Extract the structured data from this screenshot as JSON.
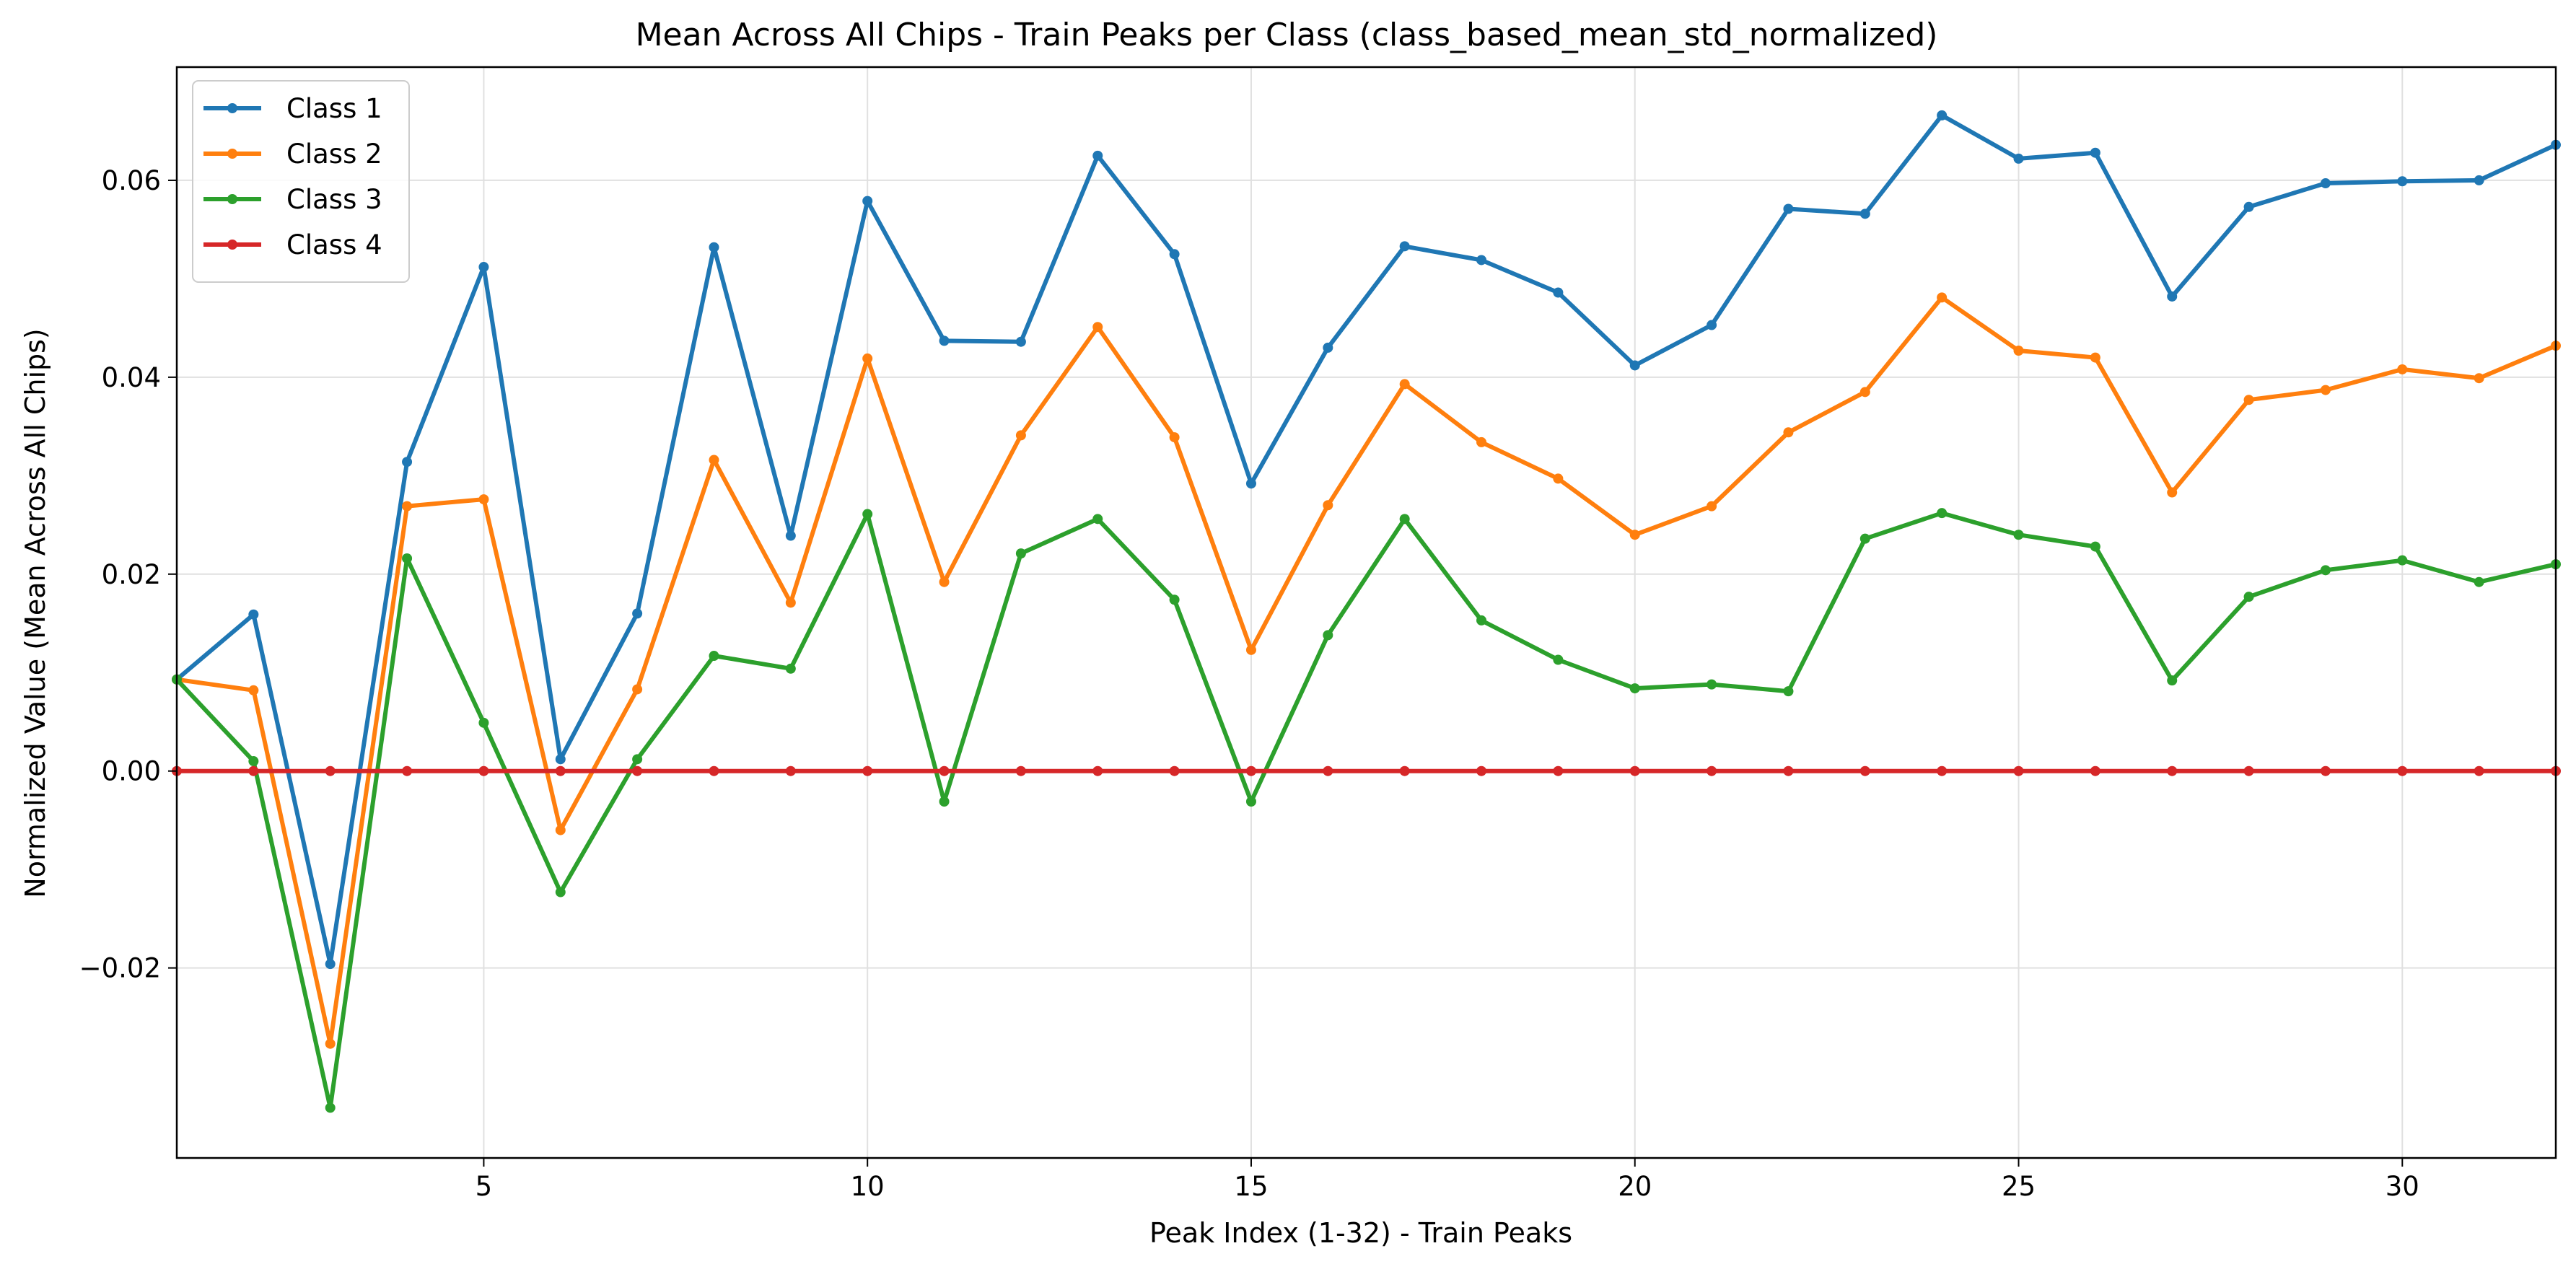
{
  "chart_data": {
    "type": "line",
    "title": "Mean Across All Chips - Train Peaks per Class (class_based_mean_std_normalized)",
    "xlabel": "Peak Index (1-32) - Train Peaks",
    "ylabel": "Normalized Value (Mean Across All Chips)",
    "xlim": [
      1,
      32
    ],
    "ylim": [
      -0.0393,
      0.0715
    ],
    "xticks": [
      5,
      10,
      15,
      20,
      25,
      30
    ],
    "xtick_labels": [
      "5",
      "10",
      "15",
      "20",
      "25",
      "30"
    ],
    "yticks": [
      -0.02,
      0.0,
      0.02,
      0.04,
      0.06
    ],
    "ytick_labels": [
      "−0.02",
      "0.00",
      "0.02",
      "0.04",
      "0.06"
    ],
    "grid": true,
    "legend_position": "top-left",
    "x": [
      1,
      2,
      3,
      4,
      5,
      6,
      7,
      8,
      9,
      10,
      11,
      12,
      13,
      14,
      15,
      16,
      17,
      18,
      19,
      20,
      21,
      22,
      23,
      24,
      25,
      26,
      27,
      28,
      29,
      30,
      31,
      32
    ],
    "series": [
      {
        "name": "Class 1",
        "color": "#1f77b4",
        "values": [
          0.0093,
          0.0159,
          -0.0196,
          0.0314,
          0.0512,
          0.0012,
          0.016,
          0.0532,
          0.0239,
          0.0579,
          0.0437,
          0.0436,
          0.0625,
          0.0525,
          0.0292,
          0.043,
          0.0533,
          0.0519,
          0.0486,
          0.0412,
          0.0453,
          0.0571,
          0.0566,
          0.0666,
          0.0622,
          0.0628,
          0.0482,
          0.0573,
          0.0597,
          0.0599,
          0.06,
          0.0636
        ]
      },
      {
        "name": "Class 2",
        "color": "#ff7f0e",
        "values": [
          0.0093,
          0.0082,
          -0.0277,
          0.0269,
          0.0276,
          -0.006,
          0.0083,
          0.0316,
          0.0171,
          0.0419,
          0.0192,
          0.0341,
          0.0451,
          0.0339,
          0.0123,
          0.027,
          0.0393,
          0.0334,
          0.0297,
          0.024,
          0.0269,
          0.0344,
          0.0385,
          0.0481,
          0.0427,
          0.042,
          0.0283,
          0.0377,
          0.0387,
          0.0408,
          0.0399,
          0.0432
        ]
      },
      {
        "name": "Class 3",
        "color": "#2ca02c",
        "values": [
          0.0093,
          0.001,
          -0.0342,
          0.0216,
          0.0049,
          -0.0123,
          0.0012,
          0.0117,
          0.0104,
          0.0261,
          -0.0031,
          0.0221,
          0.0256,
          0.0174,
          -0.0031,
          0.0138,
          0.0256,
          0.0153,
          0.0113,
          0.0084,
          0.0088,
          0.0081,
          0.0236,
          0.0262,
          0.024,
          0.0228,
          0.0092,
          0.0177,
          0.0204,
          0.0214,
          0.0192,
          0.021
        ]
      },
      {
        "name": "Class 4",
        "color": "#d62728",
        "values": [
          0,
          0,
          0,
          0,
          0,
          0,
          0,
          0,
          0,
          0,
          0,
          0,
          0,
          0,
          0,
          0,
          0,
          0,
          0,
          0,
          0,
          0,
          0,
          0,
          0,
          0,
          0,
          0,
          0,
          0,
          0,
          0
        ]
      }
    ]
  }
}
